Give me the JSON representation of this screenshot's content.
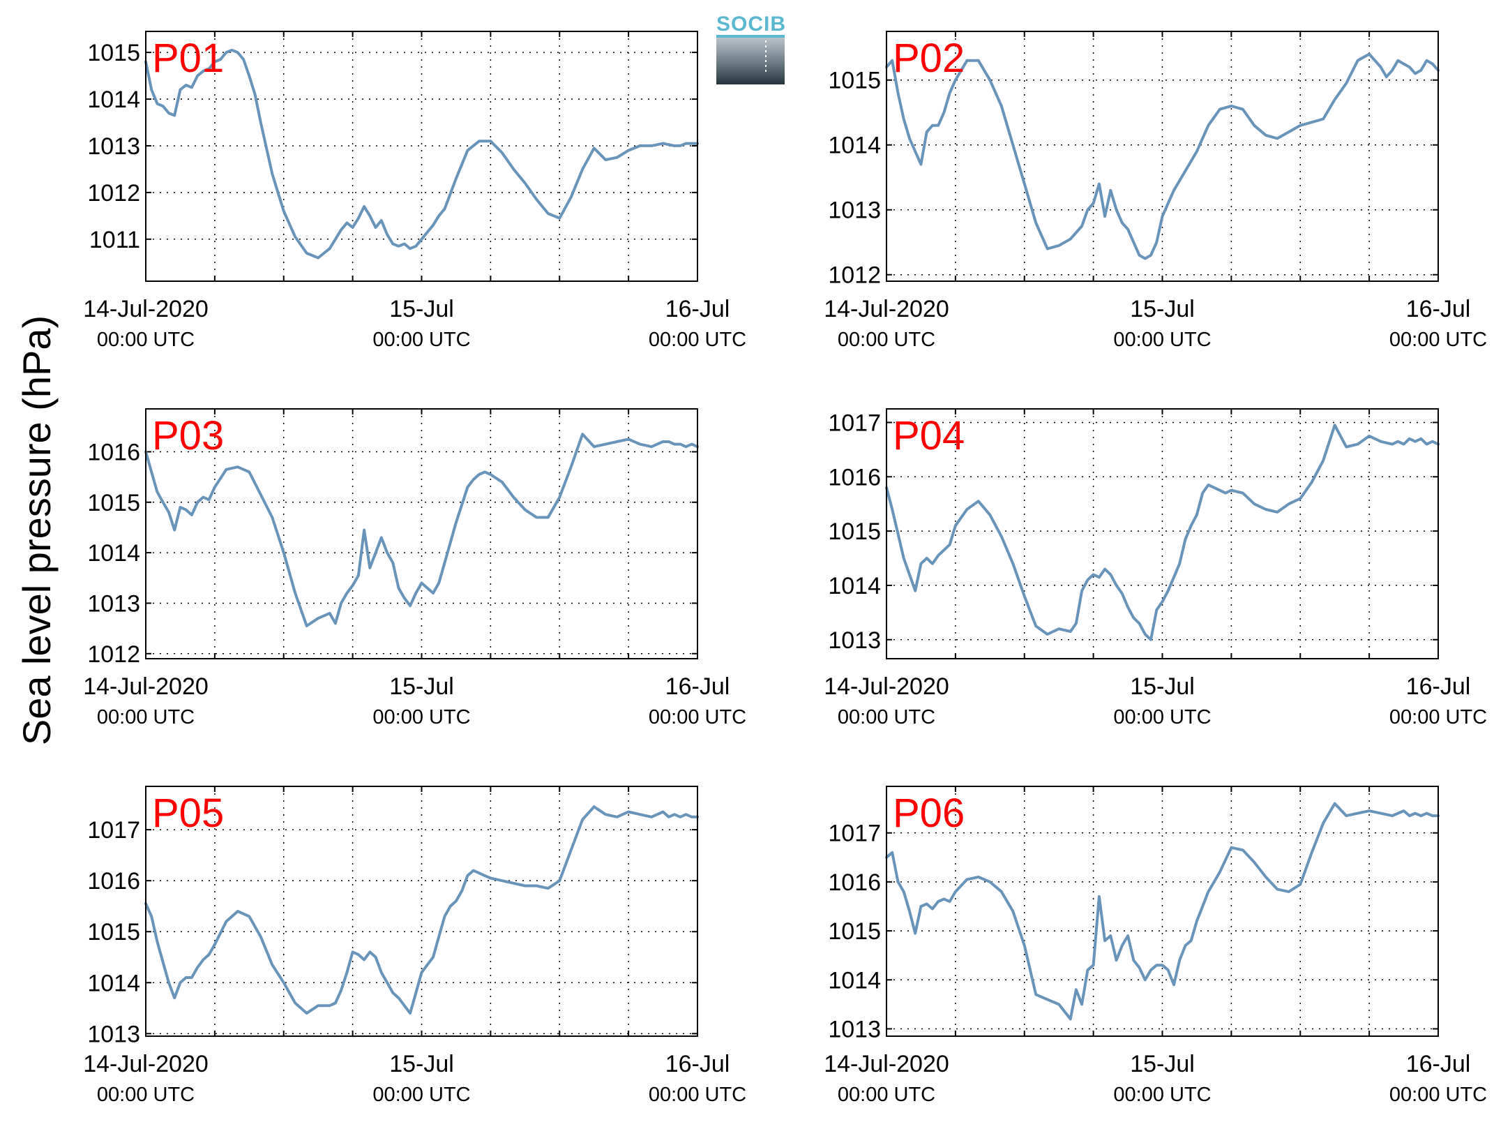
{
  "figure": {
    "ylabel": "Sea level pressure (hPa)",
    "logo_text": "SOCIB",
    "line_color": "#6894b9",
    "label_color": "#ff0000"
  },
  "chart_data": [
    {
      "type": "line",
      "label": "P01",
      "xlim": [
        0,
        48
      ],
      "ylim": [
        1010.1,
        1015.45
      ],
      "yticks": [
        1011,
        1012,
        1013,
        1014,
        1015
      ],
      "xticks": [
        {
          "t": 0,
          "date": "14-Jul-2020",
          "time": "00:00 UTC"
        },
        {
          "t": 24,
          "date": "15-Jul",
          "time": "00:00 UTC"
        },
        {
          "t": 48,
          "date": "16-Jul",
          "time": "00:00 UTC"
        }
      ],
      "grid": true,
      "x": [
        0,
        0.5,
        1,
        1.5,
        2,
        2.5,
        3,
        3.5,
        4,
        4.5,
        5,
        5.5,
        6,
        6.5,
        7,
        7.5,
        8,
        8.5,
        9,
        9.5,
        10,
        11,
        12,
        13,
        14,
        15,
        16,
        17,
        17.5,
        18,
        18.5,
        19,
        19.5,
        20,
        20.5,
        21,
        21.5,
        22,
        22.5,
        23,
        23.5,
        24,
        24.5,
        25,
        25.5,
        26,
        27,
        28,
        29,
        30,
        31,
        32,
        33,
        34,
        35,
        36,
        37,
        38,
        39,
        40,
        41,
        42,
        43,
        44,
        45,
        46,
        46.5,
        47,
        47.5,
        48
      ],
      "y": [
        1014.8,
        1014.2,
        1013.9,
        1013.85,
        1013.7,
        1013.65,
        1014.2,
        1014.3,
        1014.25,
        1014.5,
        1014.6,
        1014.65,
        1014.8,
        1014.85,
        1015.0,
        1015.05,
        1015.0,
        1014.85,
        1014.5,
        1014.1,
        1013.5,
        1012.4,
        1011.6,
        1011.05,
        1010.7,
        1010.6,
        1010.8,
        1011.2,
        1011.35,
        1011.25,
        1011.45,
        1011.7,
        1011.5,
        1011.25,
        1011.4,
        1011.1,
        1010.9,
        1010.85,
        1010.9,
        1010.8,
        1010.85,
        1011.0,
        1011.15,
        1011.3,
        1011.5,
        1011.65,
        1012.3,
        1012.9,
        1013.1,
        1013.1,
        1012.85,
        1012.5,
        1012.2,
        1011.85,
        1011.55,
        1011.45,
        1011.9,
        1012.5,
        1012.95,
        1012.7,
        1012.75,
        1012.9,
        1013.0,
        1013.0,
        1013.05,
        1013.0,
        1013.0,
        1013.05,
        1013.05,
        1013.05
      ]
    },
    {
      "type": "line",
      "label": "P02",
      "xlim": [
        0,
        48
      ],
      "ylim": [
        1011.9,
        1015.75
      ],
      "yticks": [
        1012,
        1013,
        1014,
        1015
      ],
      "xticks": [
        {
          "t": 0,
          "date": "14-Jul-2020",
          "time": "00:00 UTC"
        },
        {
          "t": 24,
          "date": "15-Jul",
          "time": "00:00 UTC"
        },
        {
          "t": 48,
          "date": "16-Jul",
          "time": "00:00 UTC"
        }
      ],
      "grid": true,
      "x": [
        0,
        0.5,
        1,
        1.5,
        2,
        2.5,
        3,
        3.5,
        4,
        4.5,
        5,
        5.5,
        6,
        6.5,
        7,
        8,
        9,
        10,
        11,
        12,
        13,
        14,
        15,
        16,
        17,
        17.5,
        18,
        18.5,
        19,
        19.5,
        20,
        20.5,
        21,
        21.5,
        22,
        22.5,
        23,
        23.5,
        24,
        24.5,
        25,
        25.5,
        26,
        27,
        28,
        29,
        30,
        31,
        32,
        33,
        34,
        35,
        36,
        37,
        38,
        39,
        40,
        41,
        42,
        43,
        43.5,
        44,
        44.5,
        45,
        45.5,
        46,
        46.5,
        47,
        47.5,
        48
      ],
      "y": [
        1015.2,
        1015.3,
        1014.8,
        1014.4,
        1014.1,
        1013.9,
        1013.7,
        1014.2,
        1014.3,
        1014.3,
        1014.5,
        1014.8,
        1015.0,
        1015.15,
        1015.3,
        1015.3,
        1015.0,
        1014.6,
        1014.0,
        1013.4,
        1012.8,
        1012.4,
        1012.45,
        1012.55,
        1012.75,
        1013.0,
        1013.1,
        1013.4,
        1012.9,
        1013.3,
        1013.0,
        1012.8,
        1012.7,
        1012.5,
        1012.3,
        1012.25,
        1012.3,
        1012.5,
        1012.9,
        1013.1,
        1013.3,
        1013.45,
        1013.6,
        1013.9,
        1014.3,
        1014.55,
        1014.6,
        1014.55,
        1014.3,
        1014.15,
        1014.1,
        1014.2,
        1014.3,
        1014.35,
        1014.4,
        1014.7,
        1014.95,
        1015.3,
        1015.4,
        1015.2,
        1015.05,
        1015.15,
        1015.3,
        1015.25,
        1015.2,
        1015.1,
        1015.15,
        1015.3,
        1015.25,
        1015.15
      ]
    },
    {
      "type": "line",
      "label": "P03",
      "xlim": [
        0,
        48
      ],
      "ylim": [
        1011.9,
        1016.85
      ],
      "yticks": [
        1012,
        1013,
        1014,
        1015,
        1016
      ],
      "xticks": [
        {
          "t": 0,
          "date": "14-Jul-2020",
          "time": "00:00 UTC"
        },
        {
          "t": 24,
          "date": "15-Jul",
          "time": "00:00 UTC"
        },
        {
          "t": 48,
          "date": "16-Jul",
          "time": "00:00 UTC"
        }
      ],
      "grid": true,
      "x": [
        0,
        0.5,
        1,
        1.5,
        2,
        2.5,
        3,
        3.5,
        4,
        4.5,
        5,
        5.5,
        6,
        7,
        8,
        9,
        10,
        11,
        12,
        13,
        14,
        15,
        16,
        16.5,
        17,
        17.5,
        18,
        18.5,
        19,
        19.5,
        20,
        20.5,
        21,
        21.5,
        22,
        22.5,
        23,
        23.5,
        24,
        24.5,
        25,
        25.5,
        26,
        26.5,
        27,
        27.5,
        28,
        28.5,
        29,
        29.5,
        30,
        31,
        32,
        33,
        34,
        35,
        36,
        37,
        38,
        39,
        40,
        41,
        42,
        43,
        44,
        44.5,
        45,
        45.5,
        46,
        46.5,
        47,
        47.5,
        48
      ],
      "y": [
        1016.0,
        1015.6,
        1015.2,
        1015.0,
        1014.8,
        1014.45,
        1014.9,
        1014.85,
        1014.75,
        1015.0,
        1015.1,
        1015.05,
        1015.3,
        1015.65,
        1015.7,
        1015.6,
        1015.15,
        1014.7,
        1014.0,
        1013.2,
        1012.55,
        1012.7,
        1012.8,
        1012.6,
        1013.0,
        1013.2,
        1013.35,
        1013.55,
        1014.45,
        1013.7,
        1014.0,
        1014.3,
        1014.0,
        1013.8,
        1013.3,
        1013.1,
        1012.95,
        1013.2,
        1013.4,
        1013.3,
        1013.2,
        1013.4,
        1013.8,
        1014.2,
        1014.6,
        1014.95,
        1015.3,
        1015.45,
        1015.55,
        1015.6,
        1015.55,
        1015.4,
        1015.1,
        1014.85,
        1014.7,
        1014.7,
        1015.1,
        1015.7,
        1016.35,
        1016.1,
        1016.15,
        1016.2,
        1016.25,
        1016.15,
        1016.1,
        1016.15,
        1016.2,
        1016.2,
        1016.15,
        1016.15,
        1016.1,
        1016.15,
        1016.1
      ]
    },
    {
      "type": "line",
      "label": "P04",
      "xlim": [
        0,
        48
      ],
      "ylim": [
        1012.65,
        1017.25
      ],
      "yticks": [
        1013,
        1014,
        1015,
        1016,
        1017
      ],
      "xticks": [
        {
          "t": 0,
          "date": "14-Jul-2020",
          "time": "00:00 UTC"
        },
        {
          "t": 24,
          "date": "15-Jul",
          "time": "00:00 UTC"
        },
        {
          "t": 48,
          "date": "16-Jul",
          "time": "00:00 UTC"
        }
      ],
      "grid": true,
      "x": [
        0,
        0.5,
        1,
        1.5,
        2,
        2.5,
        3,
        3.5,
        4,
        4.5,
        5,
        5.5,
        6,
        7,
        8,
        9,
        10,
        11,
        12,
        13,
        14,
        15,
        16,
        16.5,
        17,
        17.5,
        18,
        18.5,
        19,
        19.5,
        20,
        20.5,
        21,
        21.5,
        22,
        22.5,
        23,
        23.5,
        24,
        24.5,
        25,
        25.5,
        26,
        26.5,
        27,
        27.5,
        28,
        28.5,
        29,
        29.5,
        30,
        31,
        32,
        33,
        34,
        35,
        36,
        37,
        38,
        39,
        40,
        41,
        42,
        43,
        44,
        44.5,
        45,
        45.5,
        46,
        46.5,
        47,
        47.5,
        48
      ],
      "y": [
        1015.8,
        1015.4,
        1014.95,
        1014.5,
        1014.2,
        1013.9,
        1014.4,
        1014.5,
        1014.4,
        1014.55,
        1014.65,
        1014.75,
        1015.1,
        1015.4,
        1015.55,
        1015.3,
        1014.9,
        1014.4,
        1013.8,
        1013.25,
        1013.1,
        1013.2,
        1013.15,
        1013.3,
        1013.9,
        1014.1,
        1014.2,
        1014.15,
        1014.3,
        1014.2,
        1014.0,
        1013.85,
        1013.6,
        1013.4,
        1013.3,
        1013.1,
        1013.0,
        1013.55,
        1013.7,
        1013.9,
        1014.15,
        1014.4,
        1014.85,
        1015.1,
        1015.3,
        1015.7,
        1015.85,
        1015.8,
        1015.75,
        1015.7,
        1015.75,
        1015.7,
        1015.5,
        1015.4,
        1015.35,
        1015.5,
        1015.6,
        1015.9,
        1016.3,
        1016.95,
        1016.55,
        1016.6,
        1016.75,
        1016.65,
        1016.6,
        1016.65,
        1016.6,
        1016.7,
        1016.65,
        1016.7,
        1016.6,
        1016.65,
        1016.6
      ]
    },
    {
      "type": "line",
      "label": "P05",
      "xlim": [
        0,
        48
      ],
      "ylim": [
        1012.95,
        1017.85
      ],
      "yticks": [
        1013,
        1014,
        1015,
        1016,
        1017
      ],
      "xticks": [
        {
          "t": 0,
          "date": "14-Jul-2020",
          "time": "00:00 UTC"
        },
        {
          "t": 24,
          "date": "15-Jul",
          "time": "00:00 UTC"
        },
        {
          "t": 48,
          "date": "16-Jul",
          "time": "00:00 UTC"
        }
      ],
      "grid": true,
      "x": [
        0,
        0.5,
        1,
        1.5,
        2,
        2.5,
        3,
        3.5,
        4,
        4.5,
        5,
        5.5,
        6,
        7,
        8,
        9,
        10,
        11,
        12,
        13,
        14,
        15,
        16,
        16.5,
        17,
        17.5,
        18,
        18.5,
        19,
        19.5,
        20,
        20.5,
        21,
        21.5,
        22,
        22.5,
        23,
        23.5,
        24,
        24.5,
        25,
        25.5,
        26,
        26.5,
        27,
        27.5,
        28,
        28.5,
        29,
        29.5,
        30,
        31,
        32,
        33,
        34,
        35,
        36,
        37,
        38,
        39,
        40,
        41,
        42,
        43,
        44,
        44.5,
        45,
        45.5,
        46,
        46.5,
        47,
        47.5,
        48
      ],
      "y": [
        1015.55,
        1015.3,
        1014.8,
        1014.4,
        1014.0,
        1013.7,
        1014.0,
        1014.1,
        1014.1,
        1014.3,
        1014.45,
        1014.55,
        1014.75,
        1015.2,
        1015.4,
        1015.3,
        1014.9,
        1014.35,
        1014.0,
        1013.6,
        1013.4,
        1013.55,
        1013.55,
        1013.6,
        1013.85,
        1014.2,
        1014.6,
        1014.55,
        1014.45,
        1014.6,
        1014.5,
        1014.2,
        1014.0,
        1013.8,
        1013.7,
        1013.55,
        1013.4,
        1013.8,
        1014.2,
        1014.35,
        1014.5,
        1014.9,
        1015.3,
        1015.5,
        1015.6,
        1015.8,
        1016.1,
        1016.2,
        1016.15,
        1016.1,
        1016.05,
        1016.0,
        1015.95,
        1015.9,
        1015.9,
        1015.85,
        1016.0,
        1016.6,
        1017.2,
        1017.45,
        1017.3,
        1017.25,
        1017.35,
        1017.3,
        1017.25,
        1017.3,
        1017.35,
        1017.25,
        1017.3,
        1017.25,
        1017.3,
        1017.25,
        1017.25
      ]
    },
    {
      "type": "line",
      "label": "P06",
      "xlim": [
        0,
        48
      ],
      "ylim": [
        1012.85,
        1017.95
      ],
      "yticks": [
        1013,
        1014,
        1015,
        1016,
        1017
      ],
      "xticks": [
        {
          "t": 0,
          "date": "14-Jul-2020",
          "time": "00:00 UTC"
        },
        {
          "t": 24,
          "date": "15-Jul",
          "time": "00:00 UTC"
        },
        {
          "t": 48,
          "date": "16-Jul",
          "time": "00:00 UTC"
        }
      ],
      "grid": true,
      "x": [
        0,
        0.5,
        1,
        1.5,
        2,
        2.5,
        3,
        3.5,
        4,
        4.5,
        5,
        5.5,
        6,
        7,
        8,
        9,
        10,
        11,
        12,
        13,
        14,
        15,
        16,
        16.5,
        17,
        17.5,
        18,
        18.5,
        19,
        19.5,
        20,
        20.5,
        21,
        21.5,
        22,
        22.5,
        23,
        23.5,
        24,
        24.5,
        25,
        25.5,
        26,
        26.5,
        27,
        27.5,
        28,
        28.5,
        29,
        29.5,
        30,
        31,
        32,
        33,
        34,
        35,
        36,
        37,
        38,
        39,
        40,
        41,
        42,
        43,
        44,
        44.5,
        45,
        45.5,
        46,
        46.5,
        47,
        47.5,
        48
      ],
      "y": [
        1016.5,
        1016.6,
        1016.0,
        1015.8,
        1015.4,
        1014.95,
        1015.5,
        1015.55,
        1015.45,
        1015.6,
        1015.65,
        1015.6,
        1015.8,
        1016.05,
        1016.1,
        1016.0,
        1015.8,
        1015.4,
        1014.7,
        1013.7,
        1013.6,
        1013.5,
        1013.2,
        1013.8,
        1013.5,
        1014.2,
        1014.3,
        1015.7,
        1014.8,
        1014.9,
        1014.4,
        1014.7,
        1014.9,
        1014.4,
        1014.25,
        1014.0,
        1014.2,
        1014.3,
        1014.3,
        1014.2,
        1013.9,
        1014.4,
        1014.7,
        1014.8,
        1015.2,
        1015.5,
        1015.8,
        1016.0,
        1016.2,
        1016.45,
        1016.7,
        1016.65,
        1016.4,
        1016.1,
        1015.85,
        1015.8,
        1015.95,
        1016.6,
        1017.2,
        1017.6,
        1017.35,
        1017.4,
        1017.45,
        1017.4,
        1017.35,
        1017.4,
        1017.45,
        1017.35,
        1017.4,
        1017.35,
        1017.4,
        1017.35,
        1017.35
      ]
    }
  ]
}
